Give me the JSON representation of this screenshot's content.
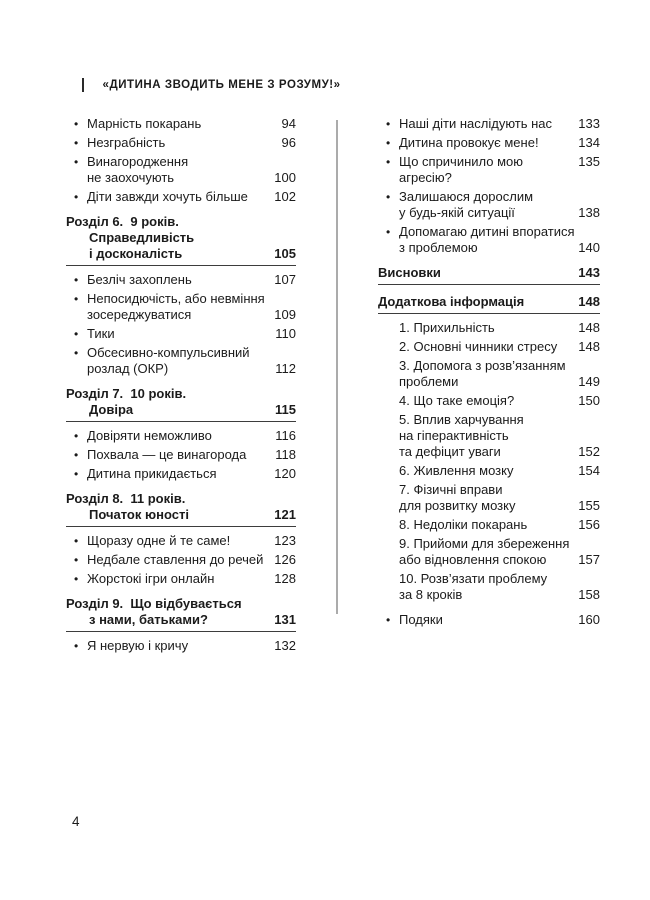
{
  "page": {
    "running_head": "«ДИТИНА ЗВОДИТЬ МЕНЕ З РОЗУМУ!»",
    "page_number": "4"
  },
  "icons": {
    "bullet_char": "•"
  },
  "colors": {
    "text": "#1b1b1b",
    "heading_rule": "#3d3d3d",
    "column_divider": "#ababab",
    "background": "#ffffff"
  },
  "toc": {
    "left_column": [
      {
        "style": "bullet",
        "lines": [
          "Марність покарань"
        ],
        "page": "94"
      },
      {
        "style": "bullet",
        "lines": [
          "Незграбність"
        ],
        "page": "96"
      },
      {
        "style": "bullet",
        "lines": [
          "Винагородження",
          "не заохочують"
        ],
        "page": "100"
      },
      {
        "style": "bullet",
        "lines": [
          "Діти завжди хочуть більше"
        ],
        "page": "102"
      },
      {
        "style": "heading",
        "lines": [
          "Розділ 6.  9 років.",
          "Справедливість",
          "і досконалість"
        ],
        "page": "105"
      },
      {
        "style": "bullet",
        "lines": [
          "Безліч захоплень"
        ],
        "page": "107"
      },
      {
        "style": "bullet",
        "lines": [
          "Непосидючість, або невміння",
          "зосереджуватися"
        ],
        "page": "109"
      },
      {
        "style": "bullet",
        "lines": [
          "Тики"
        ],
        "page": "110"
      },
      {
        "style": "bullet",
        "lines": [
          "Обсесивно-компульсивний",
          "розлад (ОКР)"
        ],
        "page": "112"
      },
      {
        "style": "heading",
        "lines": [
          "Розділ 7.  10 років.",
          "Довіра"
        ],
        "page": "115"
      },
      {
        "style": "bullet",
        "lines": [
          "Довіряти неможливо"
        ],
        "page": "116"
      },
      {
        "style": "bullet",
        "lines": [
          "Похвала — це винагорода"
        ],
        "page": "118"
      },
      {
        "style": "bullet",
        "lines": [
          "Дитина прикидається"
        ],
        "page": "120"
      },
      {
        "style": "heading",
        "lines": [
          "Розділ 8.  11 років.",
          "Початок юності"
        ],
        "page": "121"
      },
      {
        "style": "bullet",
        "lines": [
          "Щоразу одне й те саме!"
        ],
        "page": "123"
      },
      {
        "style": "bullet",
        "lines": [
          "Недбале ставлення до речей"
        ],
        "page": "126"
      },
      {
        "style": "bullet",
        "lines": [
          "Жорстокі ігри онлайн"
        ],
        "page": "128"
      },
      {
        "style": "heading",
        "lines": [
          "Розділ 9.  Що відбувається",
          "з нами, батьками?"
        ],
        "page": "131"
      },
      {
        "style": "bullet",
        "lines": [
          "Я нервую і кричу"
        ],
        "page": "132"
      }
    ],
    "right_column": [
      {
        "style": "bullet",
        "lines": [
          "Наші діти наслідують нас"
        ],
        "page": "133"
      },
      {
        "style": "bullet",
        "lines": [
          "Дитина провокує мене!"
        ],
        "page": "134"
      },
      {
        "style": "bullet",
        "lines": [
          "Що спричинило мою агресію?"
        ],
        "page": "135"
      },
      {
        "style": "bullet",
        "lines": [
          "Залишаюся дорослим",
          "у будь-якій ситуації"
        ],
        "page": "138"
      },
      {
        "style": "bullet",
        "lines": [
          "Допомагаю дитині впоратися",
          "з проблемою"
        ],
        "page": "140"
      },
      {
        "style": "heading",
        "lines": [
          "Висновки"
        ],
        "page": "143"
      },
      {
        "style": "heading",
        "lines": [
          "Додаткова інформація"
        ],
        "page": "148"
      },
      {
        "style": "plain",
        "lines": [
          "1. Прихильність"
        ],
        "page": "148"
      },
      {
        "style": "plain",
        "lines": [
          "2. Основні чинники стресу"
        ],
        "page": "148"
      },
      {
        "style": "plain",
        "lines": [
          "3. Допомога з розв’язанням",
          "проблеми"
        ],
        "page": "149"
      },
      {
        "style": "plain",
        "lines": [
          "4. Що таке емоція?"
        ],
        "page": "150"
      },
      {
        "style": "plain",
        "lines": [
          "5. Вплив харчування",
          "на гіперактивність",
          "та дефіцит уваги"
        ],
        "page": "152"
      },
      {
        "style": "plain",
        "lines": [
          "6. Живлення мозку"
        ],
        "page": "154"
      },
      {
        "style": "plain",
        "lines": [
          "7. Фізичні вправи",
          "для розвитку мозку"
        ],
        "page": "155"
      },
      {
        "style": "plain",
        "lines": [
          "8. Недоліки покарань"
        ],
        "page": "156"
      },
      {
        "style": "plain",
        "lines": [
          "9. Прийоми для збереження",
          "або відновлення спокою"
        ],
        "page": "157"
      },
      {
        "style": "plain",
        "lines": [
          "10. Розв’язати проблему",
          "за 8 кроків"
        ],
        "page": "158"
      },
      {
        "style": "bullet",
        "lines": [
          "Подяки"
        ],
        "page": "160",
        "gap_top": true
      }
    ]
  }
}
